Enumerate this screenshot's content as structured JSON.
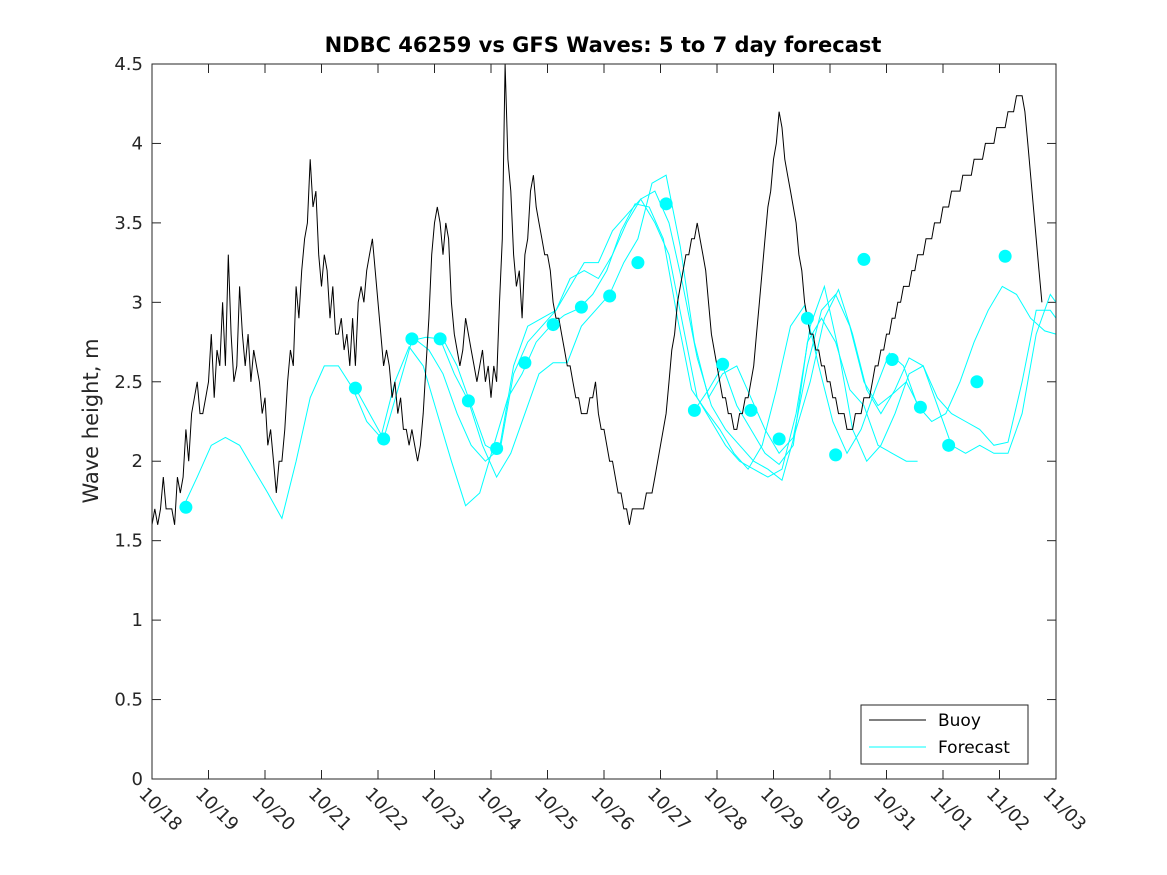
{
  "chart_data": {
    "type": "line",
    "title": "NDBC 46259 vs GFS Waves: 5 to 7 day forecast",
    "xlabel": "",
    "ylabel": "Wave height, m",
    "xlim": [
      0,
      16
    ],
    "ylim": [
      0,
      4.5
    ],
    "x_tick_labels": [
      "10/18",
      "10/19",
      "10/20",
      "10/21",
      "10/22",
      "10/23",
      "10/24",
      "10/25",
      "10/26",
      "10/27",
      "10/28",
      "10/29",
      "10/30",
      "10/31",
      "11/01",
      "11/02",
      "11/03"
    ],
    "y_ticks": [
      0,
      0.5,
      1,
      1.5,
      2,
      2.5,
      3,
      3.5,
      4,
      4.5
    ],
    "y_tick_labels": [
      "0",
      "0.5",
      "1",
      "1.5",
      "2",
      "2.5",
      "3",
      "3.5",
      "4",
      "4.5"
    ],
    "legend": {
      "location": "bottom-right",
      "entries": [
        "Buoy",
        "Forecast"
      ]
    },
    "colors": {
      "buoy": "#000000",
      "forecast": "#00ffff",
      "axes": "#262626"
    },
    "buoy": {
      "name": "Buoy",
      "x": [
        0.0,
        0.05,
        0.1,
        0.15,
        0.2,
        0.25,
        0.3,
        0.35,
        0.4,
        0.45,
        0.5,
        0.55,
        0.6,
        0.65,
        0.7,
        0.75,
        0.8,
        0.85,
        0.9,
        0.95,
        1.0,
        1.05,
        1.1,
        1.15,
        1.2,
        1.25,
        1.3,
        1.35,
        1.4,
        1.45,
        1.5,
        1.55,
        1.6,
        1.65,
        1.7,
        1.75,
        1.8,
        1.85,
        1.9,
        1.95,
        2.0,
        2.05,
        2.1,
        2.15,
        2.2,
        2.25,
        2.3,
        2.35,
        2.4,
        2.45,
        2.5,
        2.55,
        2.6,
        2.65,
        2.7,
        2.75,
        2.8,
        2.85,
        2.9,
        2.95,
        3.0,
        3.05,
        3.1,
        3.15,
        3.2,
        3.25,
        3.3,
        3.35,
        3.4,
        3.45,
        3.5,
        3.55,
        3.6,
        3.65,
        3.7,
        3.75,
        3.8,
        3.85,
        3.9,
        3.95,
        4.0,
        4.05,
        4.1,
        4.15,
        4.2,
        4.25,
        4.3,
        4.35,
        4.4,
        4.45,
        4.5,
        4.55,
        4.6,
        4.65,
        4.7,
        4.75,
        4.8,
        4.85,
        4.9,
        4.95,
        5.0,
        5.05,
        5.1,
        5.15,
        5.2,
        5.25,
        5.3,
        5.35,
        5.4,
        5.45,
        5.5,
        5.55,
        5.6,
        5.65,
        5.7,
        5.75,
        5.8,
        5.85,
        5.9,
        5.95,
        6.0,
        6.05,
        6.1,
        6.15,
        6.2,
        6.25,
        6.3,
        6.35,
        6.4,
        6.45,
        6.5,
        6.55,
        6.6,
        6.65,
        6.7,
        6.75,
        6.8,
        6.85,
        6.9,
        6.95,
        7.0,
        7.05,
        7.1,
        7.15,
        7.2,
        7.25,
        7.3,
        7.35,
        7.4,
        7.45,
        7.5,
        7.55,
        7.6,
        7.65,
        7.7,
        7.75,
        7.8,
        7.85,
        7.9,
        7.95,
        8.0,
        8.05,
        8.1,
        8.15,
        8.2,
        8.25,
        8.3,
        8.35,
        8.4,
        8.45,
        8.5,
        8.55,
        8.6,
        8.65,
        8.7,
        8.75,
        8.8,
        8.85,
        8.9,
        8.95,
        9.0,
        9.05,
        9.1,
        9.15,
        9.2,
        9.25,
        9.3,
        9.35,
        9.4,
        9.45,
        9.5,
        9.55,
        9.6,
        9.65,
        9.7,
        9.75,
        9.8,
        9.85,
        9.9,
        9.95,
        10.0,
        10.05,
        10.1,
        10.15,
        10.2,
        10.25,
        10.3,
        10.35,
        10.4,
        10.45,
        10.5,
        10.55,
        10.6,
        10.65,
        10.7,
        10.75,
        10.8,
        10.85,
        10.9,
        10.95,
        11.0,
        11.05,
        11.1,
        11.15,
        11.2,
        11.25,
        11.3,
        11.35,
        11.4,
        11.45,
        11.5,
        11.55,
        11.6,
        11.65,
        11.7,
        11.75,
        11.8,
        11.85,
        11.9,
        11.95,
        12.0,
        12.05,
        12.1,
        12.15,
        12.2,
        12.25,
        12.3,
        12.35,
        12.4,
        12.45,
        12.5,
        12.55,
        12.6,
        12.65,
        12.7,
        12.75,
        12.8,
        12.85,
        12.9,
        12.95,
        13.0,
        13.05,
        13.1,
        13.15,
        13.2,
        13.25,
        13.3,
        13.35,
        13.4,
        13.45,
        13.5,
        13.55,
        13.6,
        13.65,
        13.7,
        13.75,
        13.8,
        13.85,
        13.9,
        13.95,
        14.0,
        14.05,
        14.1,
        14.15,
        14.2,
        14.25,
        14.3,
        14.35,
        14.4,
        14.45,
        14.5,
        14.55,
        14.6,
        14.65,
        14.7,
        14.75,
        14.8,
        14.85,
        14.9,
        14.95,
        15.0,
        15.05,
        15.1,
        15.15,
        15.2,
        15.25,
        15.3,
        15.35,
        15.4,
        15.45,
        15.5,
        15.55,
        15.6,
        15.65,
        15.7,
        15.75
      ],
      "values": [
        1.6,
        1.7,
        1.6,
        1.7,
        1.9,
        1.7,
        1.7,
        1.7,
        1.6,
        1.9,
        1.8,
        1.9,
        2.2,
        2.0,
        2.3,
        2.4,
        2.5,
        2.3,
        2.3,
        2.4,
        2.5,
        2.8,
        2.4,
        2.7,
        2.6,
        3.0,
        2.6,
        3.3,
        2.8,
        2.5,
        2.6,
        3.1,
        2.8,
        2.6,
        2.8,
        2.5,
        2.7,
        2.6,
        2.5,
        2.3,
        2.4,
        2.1,
        2.2,
        2.0,
        1.8,
        2.0,
        2.0,
        2.2,
        2.5,
        2.7,
        2.6,
        3.1,
        2.9,
        3.2,
        3.4,
        3.5,
        3.9,
        3.6,
        3.7,
        3.3,
        3.1,
        3.3,
        3.2,
        2.9,
        3.1,
        2.8,
        2.8,
        2.9,
        2.7,
        2.8,
        2.6,
        2.9,
        2.6,
        3.0,
        3.1,
        3.0,
        3.2,
        3.3,
        3.4,
        3.2,
        3.0,
        2.8,
        2.6,
        2.7,
        2.6,
        2.4,
        2.5,
        2.3,
        2.4,
        2.2,
        2.2,
        2.1,
        2.2,
        2.1,
        2.0,
        2.1,
        2.3,
        2.6,
        2.9,
        3.3,
        3.5,
        3.6,
        3.5,
        3.3,
        3.5,
        3.4,
        3.0,
        2.8,
        2.7,
        2.6,
        2.7,
        2.9,
        2.8,
        2.7,
        2.6,
        2.5,
        2.6,
        2.7,
        2.5,
        2.6,
        2.4,
        2.6,
        2.5,
        3.0,
        3.4,
        4.5,
        3.9,
        3.7,
        3.3,
        3.1,
        3.2,
        2.9,
        3.3,
        3.4,
        3.7,
        3.8,
        3.6,
        3.5,
        3.4,
        3.3,
        3.3,
        3.2,
        3.0,
        2.9,
        2.9,
        2.8,
        2.7,
        2.6,
        2.6,
        2.5,
        2.4,
        2.4,
        2.3,
        2.3,
        2.3,
        2.4,
        2.4,
        2.5,
        2.3,
        2.2,
        2.2,
        2.1,
        2.0,
        2.0,
        1.9,
        1.8,
        1.8,
        1.7,
        1.7,
        1.6,
        1.7,
        1.7,
        1.7,
        1.7,
        1.7,
        1.8,
        1.8,
        1.8,
        1.9,
        2.0,
        2.1,
        2.2,
        2.3,
        2.5,
        2.7,
        2.8,
        3.0,
        3.1,
        3.2,
        3.3,
        3.3,
        3.4,
        3.4,
        3.5,
        3.4,
        3.3,
        3.2,
        3.0,
        2.8,
        2.7,
        2.6,
        2.5,
        2.4,
        2.4,
        2.3,
        2.3,
        2.2,
        2.2,
        2.3,
        2.3,
        2.4,
        2.4,
        2.5,
        2.6,
        2.8,
        3.0,
        3.2,
        3.4,
        3.6,
        3.7,
        3.9,
        4.0,
        4.2,
        4.1,
        3.9,
        3.8,
        3.7,
        3.6,
        3.5,
        3.3,
        3.2,
        3.0,
        2.9,
        2.8,
        2.8,
        2.7,
        2.7,
        2.6,
        2.6,
        2.5,
        2.5,
        2.4,
        2.4,
        2.3,
        2.3,
        2.3,
        2.2,
        2.2,
        2.2,
        2.3,
        2.3,
        2.3,
        2.4,
        2.4,
        2.4,
        2.5,
        2.6,
        2.6,
        2.7,
        2.7,
        2.8,
        2.8,
        2.9,
        2.9,
        3.0,
        3.0,
        3.1,
        3.1,
        3.1,
        3.2,
        3.2,
        3.3,
        3.3,
        3.3,
        3.4,
        3.4,
        3.4,
        3.5,
        3.5,
        3.5,
        3.6,
        3.6,
        3.6,
        3.7,
        3.7,
        3.7,
        3.7,
        3.8,
        3.8,
        3.8,
        3.8,
        3.9,
        3.9,
        3.9,
        3.9,
        4.0,
        4.0,
        4.0,
        4.0,
        4.1,
        4.1,
        4.1,
        4.1,
        4.2,
        4.2,
        4.2,
        4.3,
        4.3,
        4.3,
        4.2,
        4.0,
        3.8,
        3.6,
        3.4,
        3.2,
        3.0
      ]
    },
    "forecast_lines": [
      {
        "name": "Forecast",
        "x": [
          0.55,
          0.8,
          1.05,
          1.3,
          1.55,
          1.8,
          2.05,
          2.3,
          2.55,
          2.8,
          3.05,
          3.3,
          3.55,
          3.8,
          4.05,
          4.3,
          4.55,
          4.8,
          5.05,
          5.3,
          5.55,
          5.8,
          6.05,
          6.3,
          6.55,
          6.8,
          7.05,
          7.3,
          7.55,
          7.8,
          8.05,
          8.3,
          8.55,
          8.8,
          9.05,
          9.3,
          9.55,
          9.8,
          10.05,
          10.3,
          10.55,
          10.8,
          11.05,
          11.3,
          11.55,
          11.8,
          12.05,
          12.3,
          12.55,
          12.8,
          13.05,
          13.3,
          13.55,
          13.8,
          14.05,
          14.3,
          14.55,
          14.8,
          15.05,
          15.3,
          15.55,
          15.8,
          16.0
        ],
        "values": [
          1.71,
          1.9,
          2.1,
          2.15,
          2.1,
          1.95,
          1.8,
          1.64,
          2.0,
          2.4,
          2.6,
          2.6,
          2.46,
          2.25,
          2.15,
          2.5,
          2.72,
          2.6,
          2.3,
          2.0,
          1.72,
          1.8,
          2.1,
          2.4,
          2.55,
          2.75,
          2.85,
          2.92,
          2.96,
          3.05,
          3.2,
          3.45,
          3.62,
          3.6,
          3.4,
          2.9,
          2.45,
          2.32,
          2.2,
          2.05,
          1.95,
          2.1,
          2.45,
          2.85,
          2.98,
          2.6,
          2.25,
          2.05,
          2.2,
          2.45,
          2.68,
          2.6,
          2.35,
          2.25,
          2.3,
          2.5,
          2.75,
          2.95,
          3.1,
          3.05,
          2.9,
          2.82,
          2.8
        ]
      },
      {
        "name": "Forecast",
        "x": [
          3.6,
          3.85,
          4.1,
          4.35,
          4.6,
          4.85,
          5.1,
          5.35,
          5.6,
          5.85,
          6.1,
          6.35,
          6.6,
          6.85,
          7.1,
          7.35,
          7.6,
          7.85,
          8.1,
          8.35,
          8.6,
          8.85,
          9.1,
          9.35,
          9.6,
          9.85,
          10.1,
          10.35,
          10.6,
          10.85,
          11.1,
          11.35,
          11.6,
          11.85,
          12.1,
          12.35,
          12.6,
          12.85,
          13.1,
          13.35,
          13.55
        ],
        "values": [
          2.46,
          2.3,
          2.14,
          2.45,
          2.76,
          2.78,
          2.77,
          2.55,
          2.38,
          2.1,
          1.9,
          2.05,
          2.3,
          2.55,
          2.62,
          2.62,
          2.85,
          2.95,
          3.05,
          3.25,
          3.4,
          3.75,
          3.8,
          3.35,
          2.75,
          2.4,
          2.55,
          2.6,
          2.4,
          2.2,
          2.05,
          2.15,
          2.6,
          2.95,
          3.05,
          2.85,
          2.5,
          2.35,
          2.42,
          2.5,
          2.36
        ]
      },
      {
        "name": "Forecast",
        "x": [
          4.65,
          4.9,
          5.15,
          5.4,
          5.65,
          5.9,
          6.15,
          6.4,
          6.65,
          6.9,
          7.15,
          7.4,
          7.65,
          7.9,
          8.15,
          8.4,
          8.65,
          8.9,
          9.15,
          9.4,
          9.65,
          9.9,
          10.15,
          10.4,
          10.65,
          10.9,
          11.15,
          11.4,
          11.65,
          11.9,
          12.15,
          12.4,
          12.65,
          12.9,
          13.15,
          13.4,
          13.65,
          13.9,
          14.15,
          14.4,
          14.65,
          14.9,
          15.15,
          15.4,
          15.65,
          15.9,
          16.0
        ],
        "values": [
          2.77,
          2.7,
          2.55,
          2.3,
          2.1,
          2.0,
          2.08,
          2.6,
          2.85,
          2.9,
          2.95,
          3.15,
          3.2,
          3.15,
          3.3,
          3.5,
          3.65,
          3.7,
          3.5,
          3.1,
          2.65,
          2.35,
          2.2,
          2.1,
          2.0,
          1.95,
          1.88,
          2.2,
          2.5,
          2.9,
          3.08,
          2.8,
          2.45,
          2.3,
          2.45,
          2.65,
          2.6,
          2.4,
          2.3,
          2.25,
          2.2,
          2.1,
          2.12,
          2.5,
          2.95,
          2.95,
          2.9
        ]
      },
      {
        "name": "Forecast",
        "x": [
          5.15,
          5.4,
          5.65,
          5.9,
          6.15,
          6.4,
          6.65,
          6.9,
          7.15,
          7.4,
          7.65,
          7.9,
          8.15,
          8.4,
          8.65,
          8.9,
          9.15,
          9.4,
          9.65,
          9.9,
          10.15,
          10.4,
          10.65,
          10.9,
          11.15,
          11.4,
          11.65,
          11.9,
          12.15,
          12.4,
          12.65,
          12.9,
          13.15,
          13.4,
          13.65,
          13.9,
          14.15,
          14.4,
          14.65,
          14.9,
          15.15,
          15.4,
          15.65,
          15.9,
          16.0
        ],
        "values": [
          2.77,
          2.6,
          2.35,
          2.1,
          2.05,
          2.55,
          2.75,
          2.85,
          2.95,
          3.1,
          3.25,
          3.25,
          3.45,
          3.55,
          3.65,
          3.5,
          3.3,
          2.85,
          2.4,
          2.25,
          2.1,
          2.0,
          1.95,
          1.9,
          1.95,
          2.3,
          2.85,
          3.1,
          2.7,
          2.2,
          2.0,
          2.1,
          2.3,
          2.55,
          2.6,
          2.35,
          2.1,
          2.05,
          2.1,
          2.05,
          2.05,
          2.3,
          2.8,
          3.05,
          3.0
        ]
      },
      {
        "name": "Forecast",
        "x": [
          9.6,
          9.85,
          10.1,
          10.35,
          10.6,
          10.85,
          11.1,
          11.35,
          11.6,
          11.85,
          12.1,
          12.35,
          12.6,
          12.85,
          13.1,
          13.35,
          13.55
        ],
        "values": [
          2.32,
          2.45,
          2.6,
          2.35,
          2.2,
          2.05,
          1.98,
          2.1,
          2.75,
          2.9,
          2.75,
          2.45,
          2.35,
          2.1,
          2.05,
          2.0,
          2.0
        ]
      }
    ],
    "forecast_points": {
      "name": "Forecast",
      "x": [
        0.6,
        3.6,
        4.1,
        4.6,
        5.1,
        5.6,
        6.1,
        6.6,
        7.1,
        7.6,
        8.1,
        8.6,
        9.1,
        9.6,
        10.1,
        10.6,
        11.1,
        11.6,
        12.1,
        12.6,
        13.1,
        13.6,
        14.1,
        14.6,
        15.1
      ],
      "values": [
        1.71,
        2.46,
        2.14,
        2.77,
        2.77,
        2.38,
        2.08,
        2.62,
        2.86,
        2.97,
        3.04,
        3.25,
        3.62,
        2.32,
        2.61,
        2.32,
        2.14,
        2.9,
        2.04,
        3.27,
        2.64,
        2.34,
        2.1,
        2.5,
        3.29
      ]
    }
  }
}
